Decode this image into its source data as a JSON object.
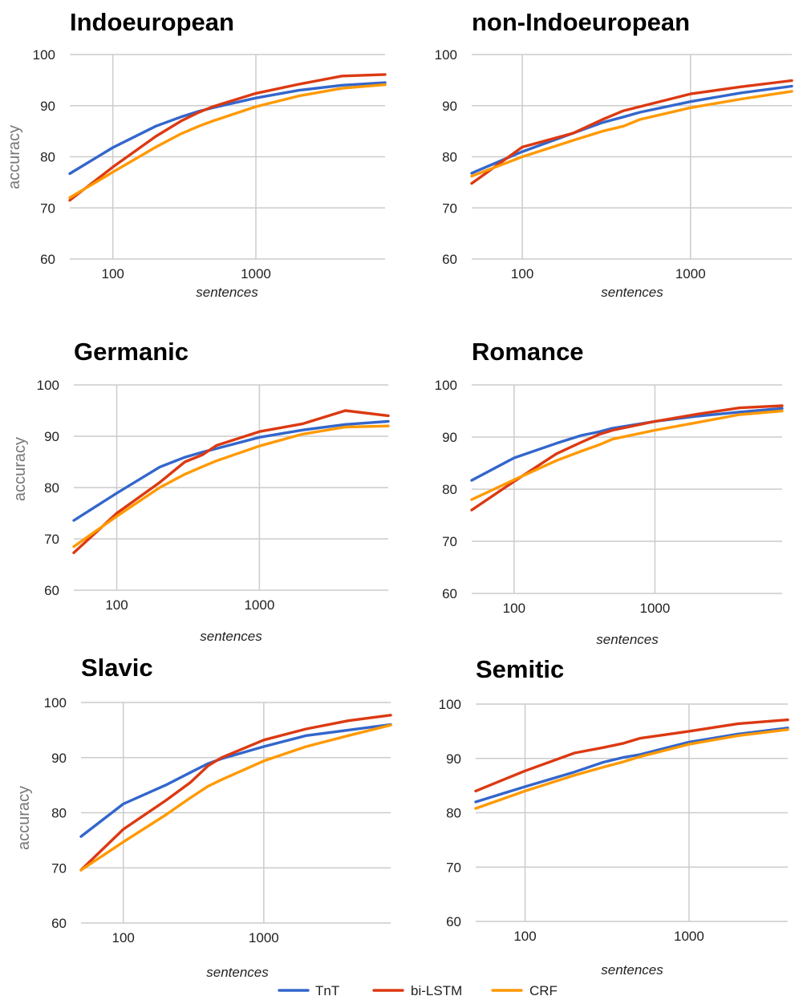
{
  "colors": {
    "TnT": "#3366cc",
    "bi-LSTM": "#dc3912",
    "CRF": "#ff9900"
  },
  "legend": [
    {
      "name": "TnT",
      "color": "#3366cc"
    },
    {
      "name": "bi-LSTM",
      "color": "#dc3912"
    },
    {
      "name": "CRF",
      "color": "#ff9900"
    }
  ],
  "chart_data": [
    {
      "type": "line",
      "title": "Indoeuropean",
      "xlabel": "sentences",
      "ylabel": "accuracy",
      "x_scale": "log",
      "xticks": [
        100,
        1000
      ],
      "ylim": [
        60,
        100
      ],
      "yticks": [
        60,
        70,
        80,
        90,
        100
      ],
      "x": [
        50,
        100,
        200,
        300,
        400,
        500,
        1000,
        2000,
        4000,
        8000
      ],
      "series": [
        {
          "name": "TnT",
          "values": [
            76.7,
            81.8,
            86.0,
            87.8,
            88.9,
            89.6,
            91.5,
            93.0,
            94.0,
            94.5
          ]
        },
        {
          "name": "bi-LSTM",
          "values": [
            71.5,
            78.0,
            84.0,
            87.0,
            88.7,
            89.8,
            92.4,
            94.2,
            95.8,
            96.1
          ]
        },
        {
          "name": "CRF",
          "values": [
            72.0,
            77.0,
            81.9,
            84.5,
            86.0,
            87.0,
            89.8,
            91.9,
            93.4,
            94.1
          ]
        }
      ]
    },
    {
      "type": "line",
      "title": "non-Indoeuropean",
      "xlabel": "sentences",
      "ylabel": "",
      "x_scale": "log",
      "xticks": [
        100,
        1000
      ],
      "ylim": [
        60,
        100
      ],
      "yticks": [
        60,
        70,
        80,
        90,
        100
      ],
      "x": [
        50,
        100,
        200,
        300,
        400,
        500,
        1000,
        2000,
        4000
      ],
      "series": [
        {
          "name": "TnT",
          "values": [
            76.8,
            81.0,
            84.6,
            86.7,
            87.8,
            88.7,
            90.8,
            92.5,
            93.8
          ]
        },
        {
          "name": "bi-LSTM",
          "values": [
            74.8,
            81.9,
            84.6,
            87.3,
            89.0,
            89.8,
            92.3,
            93.7,
            94.9
          ]
        },
        {
          "name": "CRF",
          "values": [
            76.2,
            80.0,
            83.2,
            85.0,
            86.0,
            87.3,
            89.6,
            91.3,
            92.8
          ]
        }
      ]
    },
    {
      "type": "line",
      "title": "Germanic",
      "xlabel": "sentences",
      "ylabel": "accuracy",
      "x_scale": "log",
      "xticks": [
        100,
        1000
      ],
      "ylim": [
        60,
        100
      ],
      "yticks": [
        60,
        70,
        80,
        90,
        100
      ],
      "x": [
        50,
        100,
        200,
        300,
        400,
        500,
        1000,
        2000,
        4000,
        8000
      ],
      "series": [
        {
          "name": "TnT",
          "values": [
            73.6,
            78.9,
            84.0,
            85.9,
            86.9,
            87.6,
            89.8,
            91.2,
            92.3,
            92.9
          ]
        },
        {
          "name": "bi-LSTM",
          "values": [
            67.3,
            75.0,
            81.0,
            85.0,
            86.4,
            88.2,
            90.9,
            92.4,
            95.0,
            94.0
          ]
        },
        {
          "name": "CRF",
          "values": [
            68.5,
            74.4,
            80.0,
            82.6,
            84.1,
            85.2,
            88.1,
            90.4,
            91.8,
            92.0
          ]
        }
      ]
    },
    {
      "type": "line",
      "title": "Romance",
      "xlabel": "sentences",
      "ylabel": "",
      "x_scale": "log",
      "xticks": [
        100,
        1000
      ],
      "ylim": [
        60,
        100
      ],
      "yticks": [
        60,
        70,
        80,
        90,
        100
      ],
      "x": [
        50,
        100,
        200,
        300,
        400,
        500,
        1000,
        2000,
        4000,
        8000
      ],
      "series": [
        {
          "name": "TnT",
          "values": [
            81.7,
            86.0,
            88.8,
            90.3,
            91.0,
            91.7,
            93.0,
            94.0,
            94.8,
            95.5
          ]
        },
        {
          "name": "bi-LSTM",
          "values": [
            76.0,
            81.5,
            86.8,
            89.0,
            90.5,
            91.3,
            93.0,
            94.4,
            95.6,
            96.0
          ]
        },
        {
          "name": "CRF",
          "values": [
            78.0,
            81.8,
            85.5,
            87.3,
            88.5,
            89.6,
            91.3,
            92.8,
            94.3,
            95.0
          ]
        }
      ]
    },
    {
      "type": "line",
      "title": "Slavic",
      "xlabel": "sentences",
      "ylabel": "accuracy",
      "x_scale": "log",
      "xticks": [
        100,
        1000
      ],
      "ylim": [
        60,
        100
      ],
      "yticks": [
        60,
        70,
        80,
        90,
        100
      ],
      "x": [
        50,
        100,
        200,
        300,
        400,
        500,
        1000,
        2000,
        4000,
        8000
      ],
      "series": [
        {
          "name": "TnT",
          "values": [
            75.7,
            81.6,
            85.0,
            87.3,
            88.9,
            89.8,
            92.0,
            94.0,
            95.0,
            96.0
          ]
        },
        {
          "name": "bi-LSTM",
          "values": [
            69.6,
            77.0,
            82.2,
            85.5,
            88.5,
            90.0,
            93.2,
            95.2,
            96.7,
            97.7
          ]
        },
        {
          "name": "CRF",
          "values": [
            69.6,
            74.7,
            79.6,
            82.7,
            84.8,
            86.0,
            89.4,
            92.0,
            94.0,
            95.9
          ]
        }
      ]
    },
    {
      "type": "line",
      "title": "Semitic",
      "xlabel": "sentences",
      "ylabel": "",
      "x_scale": "log",
      "xticks": [
        100,
        1000
      ],
      "ylim": [
        60,
        100
      ],
      "yticks": [
        60,
        70,
        80,
        90,
        100
      ],
      "x": [
        50,
        100,
        200,
        300,
        400,
        500,
        1000,
        2000,
        4000
      ],
      "series": [
        {
          "name": "TnT",
          "values": [
            82.0,
            84.8,
            87.5,
            89.3,
            90.2,
            90.7,
            93.0,
            94.5,
            95.6
          ]
        },
        {
          "name": "bi-LSTM",
          "values": [
            84.0,
            87.7,
            91.0,
            92.0,
            92.8,
            93.7,
            95.0,
            96.4,
            97.1
          ]
        },
        {
          "name": "CRF",
          "values": [
            80.8,
            84.0,
            86.9,
            88.4,
            89.4,
            90.3,
            92.6,
            94.2,
            95.3
          ]
        }
      ]
    }
  ]
}
